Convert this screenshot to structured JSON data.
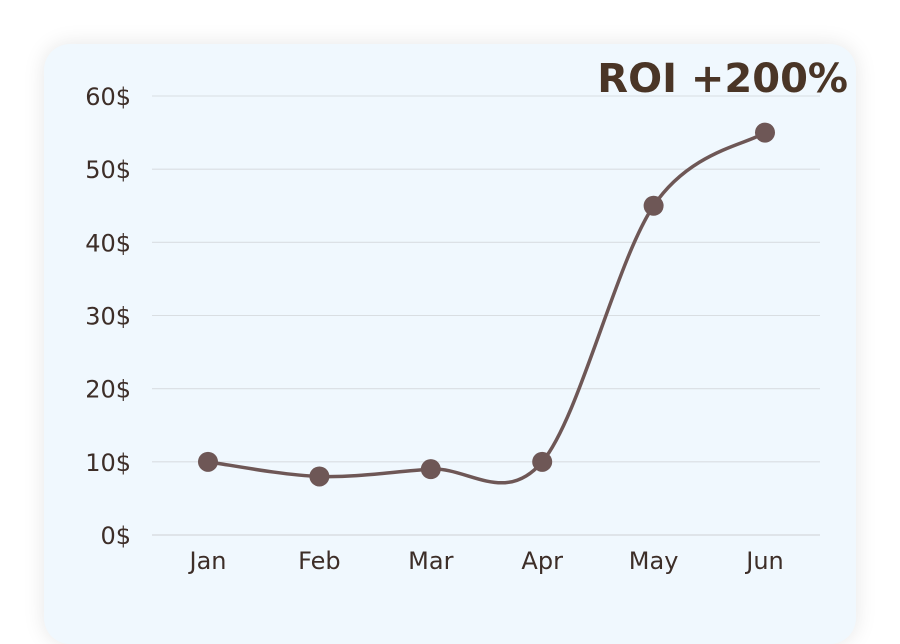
{
  "colors": {
    "line": "#6e5756",
    "point": "#6e5756",
    "grid": "#d9dee2",
    "text": "#3d2e28",
    "headline": "#4a3526",
    "card": "#f0f8fe"
  },
  "chart_data": {
    "type": "line",
    "title": "ROI +200%",
    "xlabel": "",
    "ylabel": "",
    "categories": [
      "Jan",
      "Feb",
      "Mar",
      "Apr",
      "May",
      "Jun"
    ],
    "series": [
      {
        "values": [
          10,
          8,
          9,
          10,
          45,
          55
        ]
      }
    ],
    "ylim": [
      0,
      60
    ],
    "yticks": [
      0,
      10,
      20,
      30,
      40,
      50,
      60
    ],
    "ytick_labels": [
      "0$",
      "10$",
      "20$",
      "30$",
      "40$",
      "50$",
      "60$"
    ],
    "grid": "horizontal",
    "smooth": true
  }
}
